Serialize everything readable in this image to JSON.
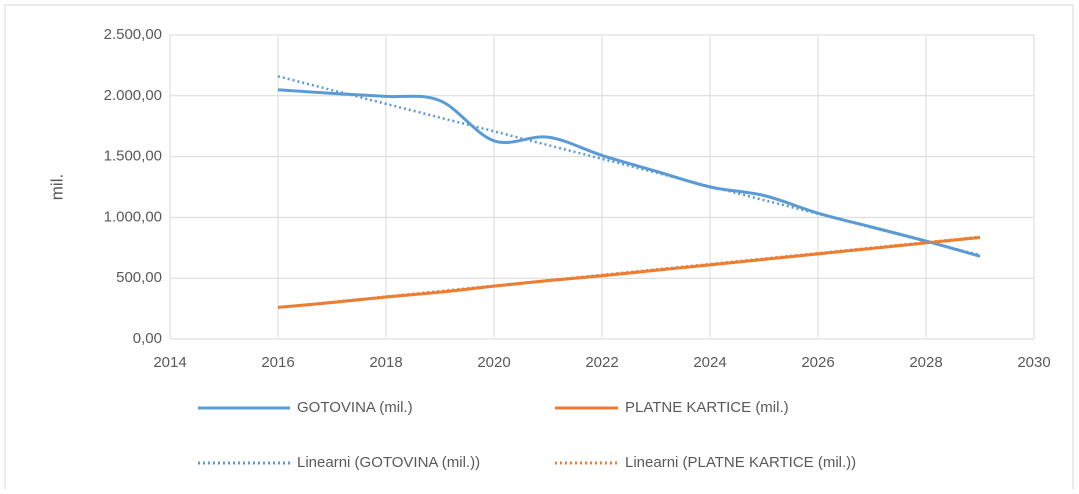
{
  "chart_data": {
    "type": "line",
    "ylabel": "mil.",
    "xlim": [
      2014,
      2030
    ],
    "xticks": [
      2014,
      2016,
      2018,
      2020,
      2022,
      2024,
      2026,
      2028,
      2030
    ],
    "ylim": [
      0,
      2500
    ],
    "yticks": [
      {
        "value": 0,
        "label": "0,00"
      },
      {
        "value": 500,
        "label": "500,00"
      },
      {
        "value": 1000,
        "label": "1.000,00"
      },
      {
        "value": 1500,
        "label": "1.500,00"
      },
      {
        "value": 2000,
        "label": "2.000,00"
      },
      {
        "value": 2500,
        "label": "2.500,00"
      }
    ],
    "grid": true,
    "legend": "bottom",
    "smooth": true,
    "series": [
      {
        "name": "GOTOVINA (mil.)",
        "color": "#5b9bd5",
        "style": "solid",
        "x": [
          2016,
          2017,
          2018,
          2019,
          2020,
          2021,
          2022,
          2023,
          2024,
          2025,
          2026,
          2027,
          2028,
          2029
        ],
        "values": [
          2050,
          2020,
          1995,
          1960,
          1630,
          1660,
          1510,
          1380,
          1250,
          1180,
          1035,
          920,
          805,
          680
        ]
      },
      {
        "name": "PLATNE KARTICE (mil.)",
        "color": "#ed7d31",
        "style": "solid",
        "x": [
          2016,
          2017,
          2018,
          2019,
          2020,
          2021,
          2022,
          2023,
          2024,
          2025,
          2026,
          2027,
          2028,
          2029
        ],
        "values": [
          260,
          300,
          345,
          385,
          435,
          480,
          520,
          565,
          610,
          655,
          700,
          745,
          790,
          835
        ]
      },
      {
        "name": "Linearni (GOTOVINA (mil.))",
        "color": "#5b9bd5",
        "style": "dotted",
        "x": [
          2016,
          2029
        ],
        "values": [
          2160,
          690
        ]
      },
      {
        "name": "Linearni (PLATNE KARTICE (mil.))",
        "color": "#ed7d31",
        "style": "dotted",
        "x": [
          2016,
          2029
        ],
        "values": [
          260,
          840
        ]
      }
    ]
  }
}
